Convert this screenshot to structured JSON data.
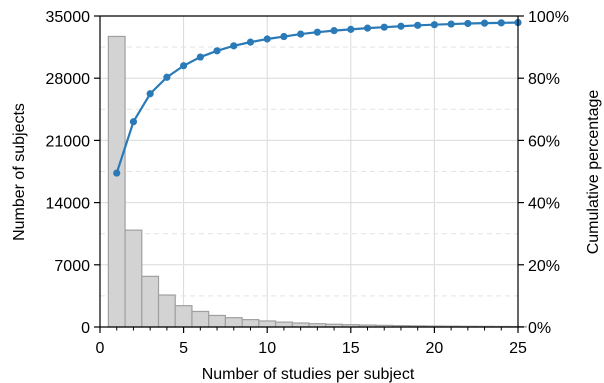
{
  "chart_data": {
    "type": "bar",
    "xlabel": "Number of studies per subject",
    "ylabel": "Number of subjects",
    "y2label": "Cumulative percentage",
    "xlim": [
      0,
      25
    ],
    "ylim": [
      0,
      35000
    ],
    "y2lim": [
      0,
      100
    ],
    "xticks": [
      "0",
      "5",
      "10",
      "15",
      "20",
      "25"
    ],
    "yticks": [
      "0",
      "7000",
      "14000",
      "21000",
      "28000",
      "35000"
    ],
    "y2ticks": [
      "0%",
      "20%",
      "40%",
      "60%",
      "80%",
      "100%"
    ],
    "grid": true,
    "bar_color": "#d3d3d3",
    "bar_edge_color": "#a0a0a0",
    "line_color": "#2a7ab8",
    "series": [
      {
        "type": "bar",
        "axis": "left",
        "x": [
          1,
          2,
          3,
          4,
          5,
          6,
          7,
          8,
          9,
          10,
          11,
          12,
          13,
          14,
          15,
          16,
          17,
          18,
          19,
          20,
          21,
          22,
          23,
          24,
          25
        ],
        "values": [
          32700,
          10900,
          5700,
          3600,
          2400,
          1750,
          1300,
          1050,
          830,
          680,
          550,
          450,
          370,
          310,
          260,
          220,
          185,
          155,
          130,
          110,
          95,
          80,
          70,
          60,
          50
        ]
      },
      {
        "type": "line",
        "axis": "right",
        "x": [
          1,
          2,
          3,
          4,
          5,
          6,
          7,
          8,
          9,
          10,
          11,
          12,
          13,
          14,
          15,
          16,
          17,
          18,
          19,
          20,
          21,
          22,
          23,
          24,
          25
        ],
        "values": [
          49.5,
          66.0,
          75.0,
          80.3,
          84.0,
          86.8,
          88.8,
          90.4,
          91.6,
          92.6,
          93.4,
          94.2,
          94.8,
          95.3,
          95.7,
          96.1,
          96.4,
          96.7,
          97.0,
          97.2,
          97.4,
          97.6,
          97.7,
          97.8,
          97.9
        ]
      }
    ]
  }
}
